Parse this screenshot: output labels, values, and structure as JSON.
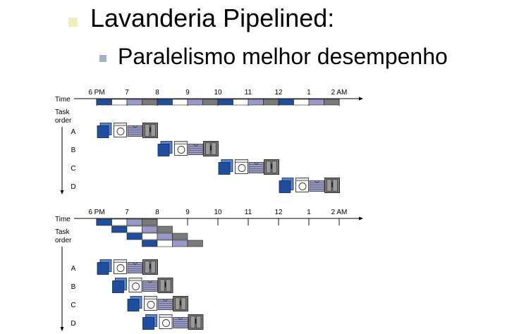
{
  "slide": {
    "title": "Lavanderia Pipelined:",
    "subtitle": "Paralelismo melhor desempenho",
    "bullet_colors": {
      "level1": "#eeeebb",
      "level2": "#9fb2c7"
    }
  },
  "colors": {
    "washer": "#1f4e9c",
    "dryer": "#ffffff",
    "folder": "#9a9ac8",
    "storer": "#7a7a7a",
    "axis": "#000000"
  },
  "diagrams": [
    {
      "id": "sequential",
      "time_label": "Time",
      "ticks": [
        "6 PM",
        "7",
        "8",
        "9",
        "10",
        "11",
        "12",
        "1",
        "2 AM"
      ],
      "axis_label": [
        "Task",
        "order"
      ],
      "tasks": [
        "A",
        "B",
        "C",
        "D"
      ],
      "task_start_hours": [
        0,
        2,
        4,
        6
      ],
      "stage_duration_hours": 0.5
    },
    {
      "id": "pipelined",
      "time_label": "Time",
      "ticks": [
        "6 PM",
        "7",
        "8",
        "9",
        "10",
        "11",
        "12",
        "1",
        "2 AM"
      ],
      "axis_label": [
        "Task",
        "order"
      ],
      "tasks": [
        "A",
        "B",
        "C",
        "D"
      ],
      "task_start_hours": [
        0,
        0.5,
        1,
        1.5
      ],
      "stage_duration_hours": 0.5
    }
  ]
}
